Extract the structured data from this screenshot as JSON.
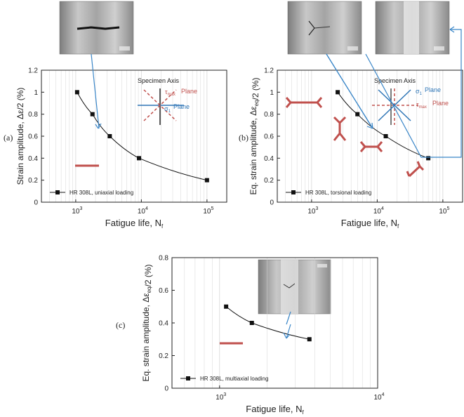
{
  "chart_data": [
    {
      "type": "scatter",
      "panel_label": "(a)",
      "ylabel": "Strain amplitude, Δε/2 (%)",
      "xlabel": "Fatigue life, N_f",
      "x_scale": "log",
      "xlim": [
        300,
        200000
      ],
      "ylim": [
        0,
        1.2
      ],
      "yticks": [
        "0",
        "0.2",
        "0.4",
        "0.6",
        "0.8",
        "1",
        "1.2"
      ],
      "xticks": [
        "10^3",
        "10^4",
        "10^5"
      ],
      "grid": true,
      "legend_position": "bottom-left",
      "series": [
        {
          "name": "HR 308L, uniaxial loading",
          "x": [
            1050,
            1800,
            3300,
            9200,
            100000
          ],
          "y": [
            1.0,
            0.8,
            0.6,
            0.4,
            0.2
          ]
        }
      ],
      "annotations": [
        "Specimen Axis",
        "τmax Plane",
        "σ1 Plane"
      ]
    },
    {
      "type": "scatter",
      "panel_label": "(b)",
      "ylabel": "Eq. strain amplitude, Δε_eq/2 (%)",
      "xlabel": "Fatigue life, N_f",
      "x_scale": "log",
      "xlim": [
        300,
        200000
      ],
      "ylim": [
        0,
        1.2
      ],
      "yticks": [
        "0",
        "0.2",
        "0.4",
        "0.6",
        "0.8",
        "1",
        "1.2"
      ],
      "xticks": [
        "10^3",
        "10^4",
        "10^5"
      ],
      "grid": true,
      "legend_position": "bottom-left",
      "series": [
        {
          "name": "HR 308L, torsional loading",
          "x": [
            2500,
            5000,
            13500,
            60000
          ],
          "y": [
            1.0,
            0.8,
            0.6,
            0.4
          ]
        }
      ],
      "annotations": [
        "Specimen Axis",
        "σ1 Plane",
        "τmax Plane"
      ]
    },
    {
      "type": "scatter",
      "panel_label": "(c)",
      "ylabel": "Eq. strain amplitude, Δε_eq/2 (%)",
      "xlabel": "Fatigue life, N_f",
      "x_scale": "log",
      "xlim": [
        500,
        10000
      ],
      "ylim": [
        0,
        0.8
      ],
      "yticks": [
        "0",
        "0.2",
        "0.4",
        "0.6",
        "0.8"
      ],
      "xticks": [
        "10^3",
        "10^4"
      ],
      "grid": true,
      "legend_position": "bottom-left",
      "series": [
        {
          "name": "HR 308L, multiaxial loading",
          "x": [
            1100,
            1600,
            3700
          ],
          "y": [
            0.5,
            0.4,
            0.3
          ]
        }
      ]
    }
  ],
  "colors": {
    "axis": "#222222",
    "grid": "#d6d6d6",
    "crack": "#c0504d",
    "sigma": "#2e75b6",
    "link": "#3a86c8"
  },
  "texts": {
    "a_spec_axis": "Specimen Axis",
    "a_tau_plane": "Plane",
    "a_sigma_plane": "Plane",
    "b_spec_axis": "Specimen Axis",
    "b_sigma_plane": "Plane",
    "b_tau_plane": "Plane"
  }
}
